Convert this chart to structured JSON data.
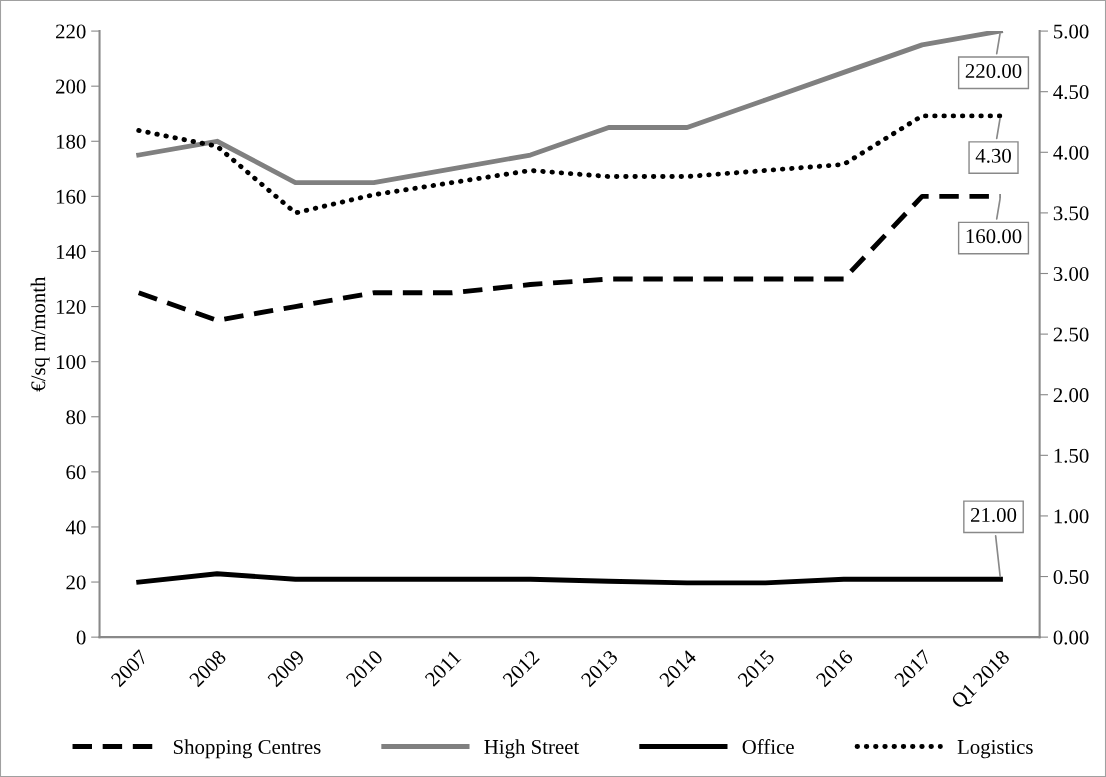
{
  "chart_data": {
    "type": "line",
    "ylabel": "€/sq m/month",
    "categories": [
      "2007",
      "2008",
      "2009",
      "2010",
      "2011",
      "2012",
      "2013",
      "2014",
      "2015",
      "2016",
      "2017",
      "Q1 2018"
    ],
    "ylim": [
      0,
      220
    ],
    "yticks": [
      0,
      20,
      40,
      60,
      80,
      100,
      120,
      140,
      160,
      180,
      200,
      220
    ],
    "y2lim": [
      0,
      5
    ],
    "y2ticks": [
      {
        "value": 0,
        "label": "0.00"
      },
      {
        "value": 0.5,
        "label": "0.50"
      },
      {
        "value": 1,
        "label": "1.00"
      },
      {
        "value": 1.5,
        "label": "1.50"
      },
      {
        "value": 2,
        "label": "2.00"
      },
      {
        "value": 2.5,
        "label": "2.50"
      },
      {
        "value": 3,
        "label": "3.00"
      },
      {
        "value": 3.5,
        "label": "3.50"
      },
      {
        "value": 4,
        "label": "4.00"
      },
      {
        "value": 4.5,
        "label": "4.50"
      },
      {
        "value": 5,
        "label": "5.00"
      }
    ],
    "grid": false,
    "legend": "bottom",
    "series": [
      {
        "name": "Shopping Centres",
        "color": "#000000",
        "line_style": "dashed",
        "values": [
          125,
          115,
          120,
          125,
          125,
          128,
          130,
          130,
          130,
          130,
          160,
          160
        ],
        "value_labels": [
          null,
          null,
          null,
          null,
          null,
          null,
          null,
          null,
          null,
          null,
          null,
          "160.00"
        ]
      },
      {
        "name": "High Street",
        "color": "#808080",
        "line_style": "solid",
        "values": [
          175,
          180,
          165,
          165,
          170,
          175,
          185,
          185,
          195,
          205,
          215,
          220
        ],
        "value_labels": [
          null,
          null,
          null,
          null,
          null,
          null,
          null,
          null,
          null,
          null,
          null,
          "220.00"
        ]
      },
      {
        "name": "Office",
        "color": "#000000",
        "line_style": "solid",
        "values": [
          20,
          23,
          21,
          21,
          21,
          21,
          20.3,
          19.7,
          19.7,
          21,
          21,
          21
        ],
        "value_labels": [
          null,
          null,
          null,
          null,
          null,
          null,
          null,
          null,
          null,
          null,
          null,
          "21.00"
        ]
      },
      {
        "name": "Logistics",
        "color": "#000000",
        "line_style": "dotted",
        "axis": "y2",
        "values": [
          4.18,
          4.05,
          3.5,
          3.65,
          3.75,
          3.85,
          3.8,
          3.8,
          3.85,
          3.9,
          4.3,
          4.3
        ],
        "value_labels": [
          null,
          null,
          null,
          null,
          null,
          null,
          null,
          null,
          null,
          null,
          null,
          "4.30"
        ]
      }
    ]
  }
}
